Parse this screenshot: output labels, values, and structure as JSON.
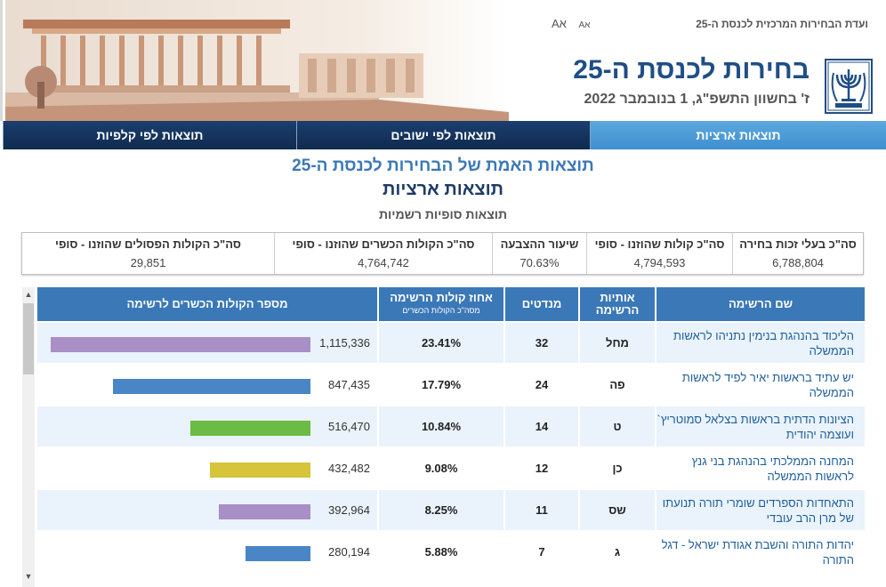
{
  "header": {
    "committee": "ועדת הבחירות המרכזית לכנסת ה-25",
    "font_large": "Aא",
    "font_small": "Aא",
    "title": "בחירות לכנסת ה-25",
    "date": "ז' בחשוון התשפ\"ג, 1 בנובמבר 2022"
  },
  "nav": {
    "tabs": [
      {
        "label": "תוצאות ארציות",
        "active": true
      },
      {
        "label": "תוצאות לפי ישובים",
        "active": false
      },
      {
        "label": "תוצאות לפי קלפיות",
        "active": false
      }
    ]
  },
  "titles": {
    "main": "תוצאות האמת של הבחירות לכנסת ה-25",
    "sub": "תוצאות ארציות",
    "status": "תוצאות סופיות רשמיות"
  },
  "summary": [
    {
      "label": "סה\"כ בעלי זכות בחירה",
      "value": "6,788,804"
    },
    {
      "label": "סה\"כ קולות שהוזנו - סופי",
      "value": "4,794,593"
    },
    {
      "label": "שיעור ההצבעה",
      "value": "70.63%"
    },
    {
      "label": "סה\"כ הקולות הכשרים שהוזנו - סופי",
      "value": "4,764,742"
    },
    {
      "label": "סה\"כ הקולות הפסולים שהוזנו - סופי",
      "value": "29,851"
    }
  ],
  "table": {
    "headers": {
      "name": "שם הרשימה",
      "letters_line1": "אותיות",
      "letters_line2": "הרשימה",
      "seats": "מנדטים",
      "pct": "אחוז קולות הרשימה",
      "pct_sub": "מסה\"כ הקולות הכשרים",
      "votes": "מספר הקולות הכשרים לרשימה"
    },
    "rows": [
      {
        "name": "הליכוד בהנהגת בנימין נתניהו לראשות הממשלה",
        "letters": "מחל",
        "seats": "32",
        "pct": "23.41%",
        "votes": "1,115,336",
        "votes_value": 1115336,
        "color": "#a98fc5"
      },
      {
        "name": "יש עתיד בראשות יאיר לפיד לראשות הממשלה",
        "letters": "פה",
        "seats": "24",
        "pct": "17.79%",
        "votes": "847,435",
        "votes_value": 847435,
        "color": "#4a86c6"
      },
      {
        "name": "הציונות הדתית בראשות בצלאל סמוטריץ` ועוצמה יהודית",
        "letters": "ט",
        "seats": "14",
        "pct": "10.84%",
        "votes": "516,470",
        "votes_value": 516470,
        "color": "#6cbb45"
      },
      {
        "name": "המחנה הממלכתי בהנהגת בני גנץ לראשות הממשלה",
        "letters": "כן",
        "seats": "12",
        "pct": "9.08%",
        "votes": "432,482",
        "votes_value": 432482,
        "color": "#d6c43a"
      },
      {
        "name": "התאחדות הספרדים שומרי תורה תנועתו של מרן הרב עובדי",
        "letters": "שס",
        "seats": "11",
        "pct": "8.25%",
        "votes": "392,964",
        "votes_value": 392964,
        "color": "#a98fc5"
      },
      {
        "name": "יהדות התורה והשבת אגודת ישראל - דגל התורה",
        "letters": "ג",
        "seats": "7",
        "pct": "5.88%",
        "votes": "280,194",
        "votes_value": 280194,
        "color": "#4a86c6"
      }
    ]
  },
  "colors": {
    "header_blue": "#3b78b8",
    "nav_dark": "#0f2a4e",
    "nav_active": "#5ca8df",
    "row_light": "#eaf3fb"
  }
}
